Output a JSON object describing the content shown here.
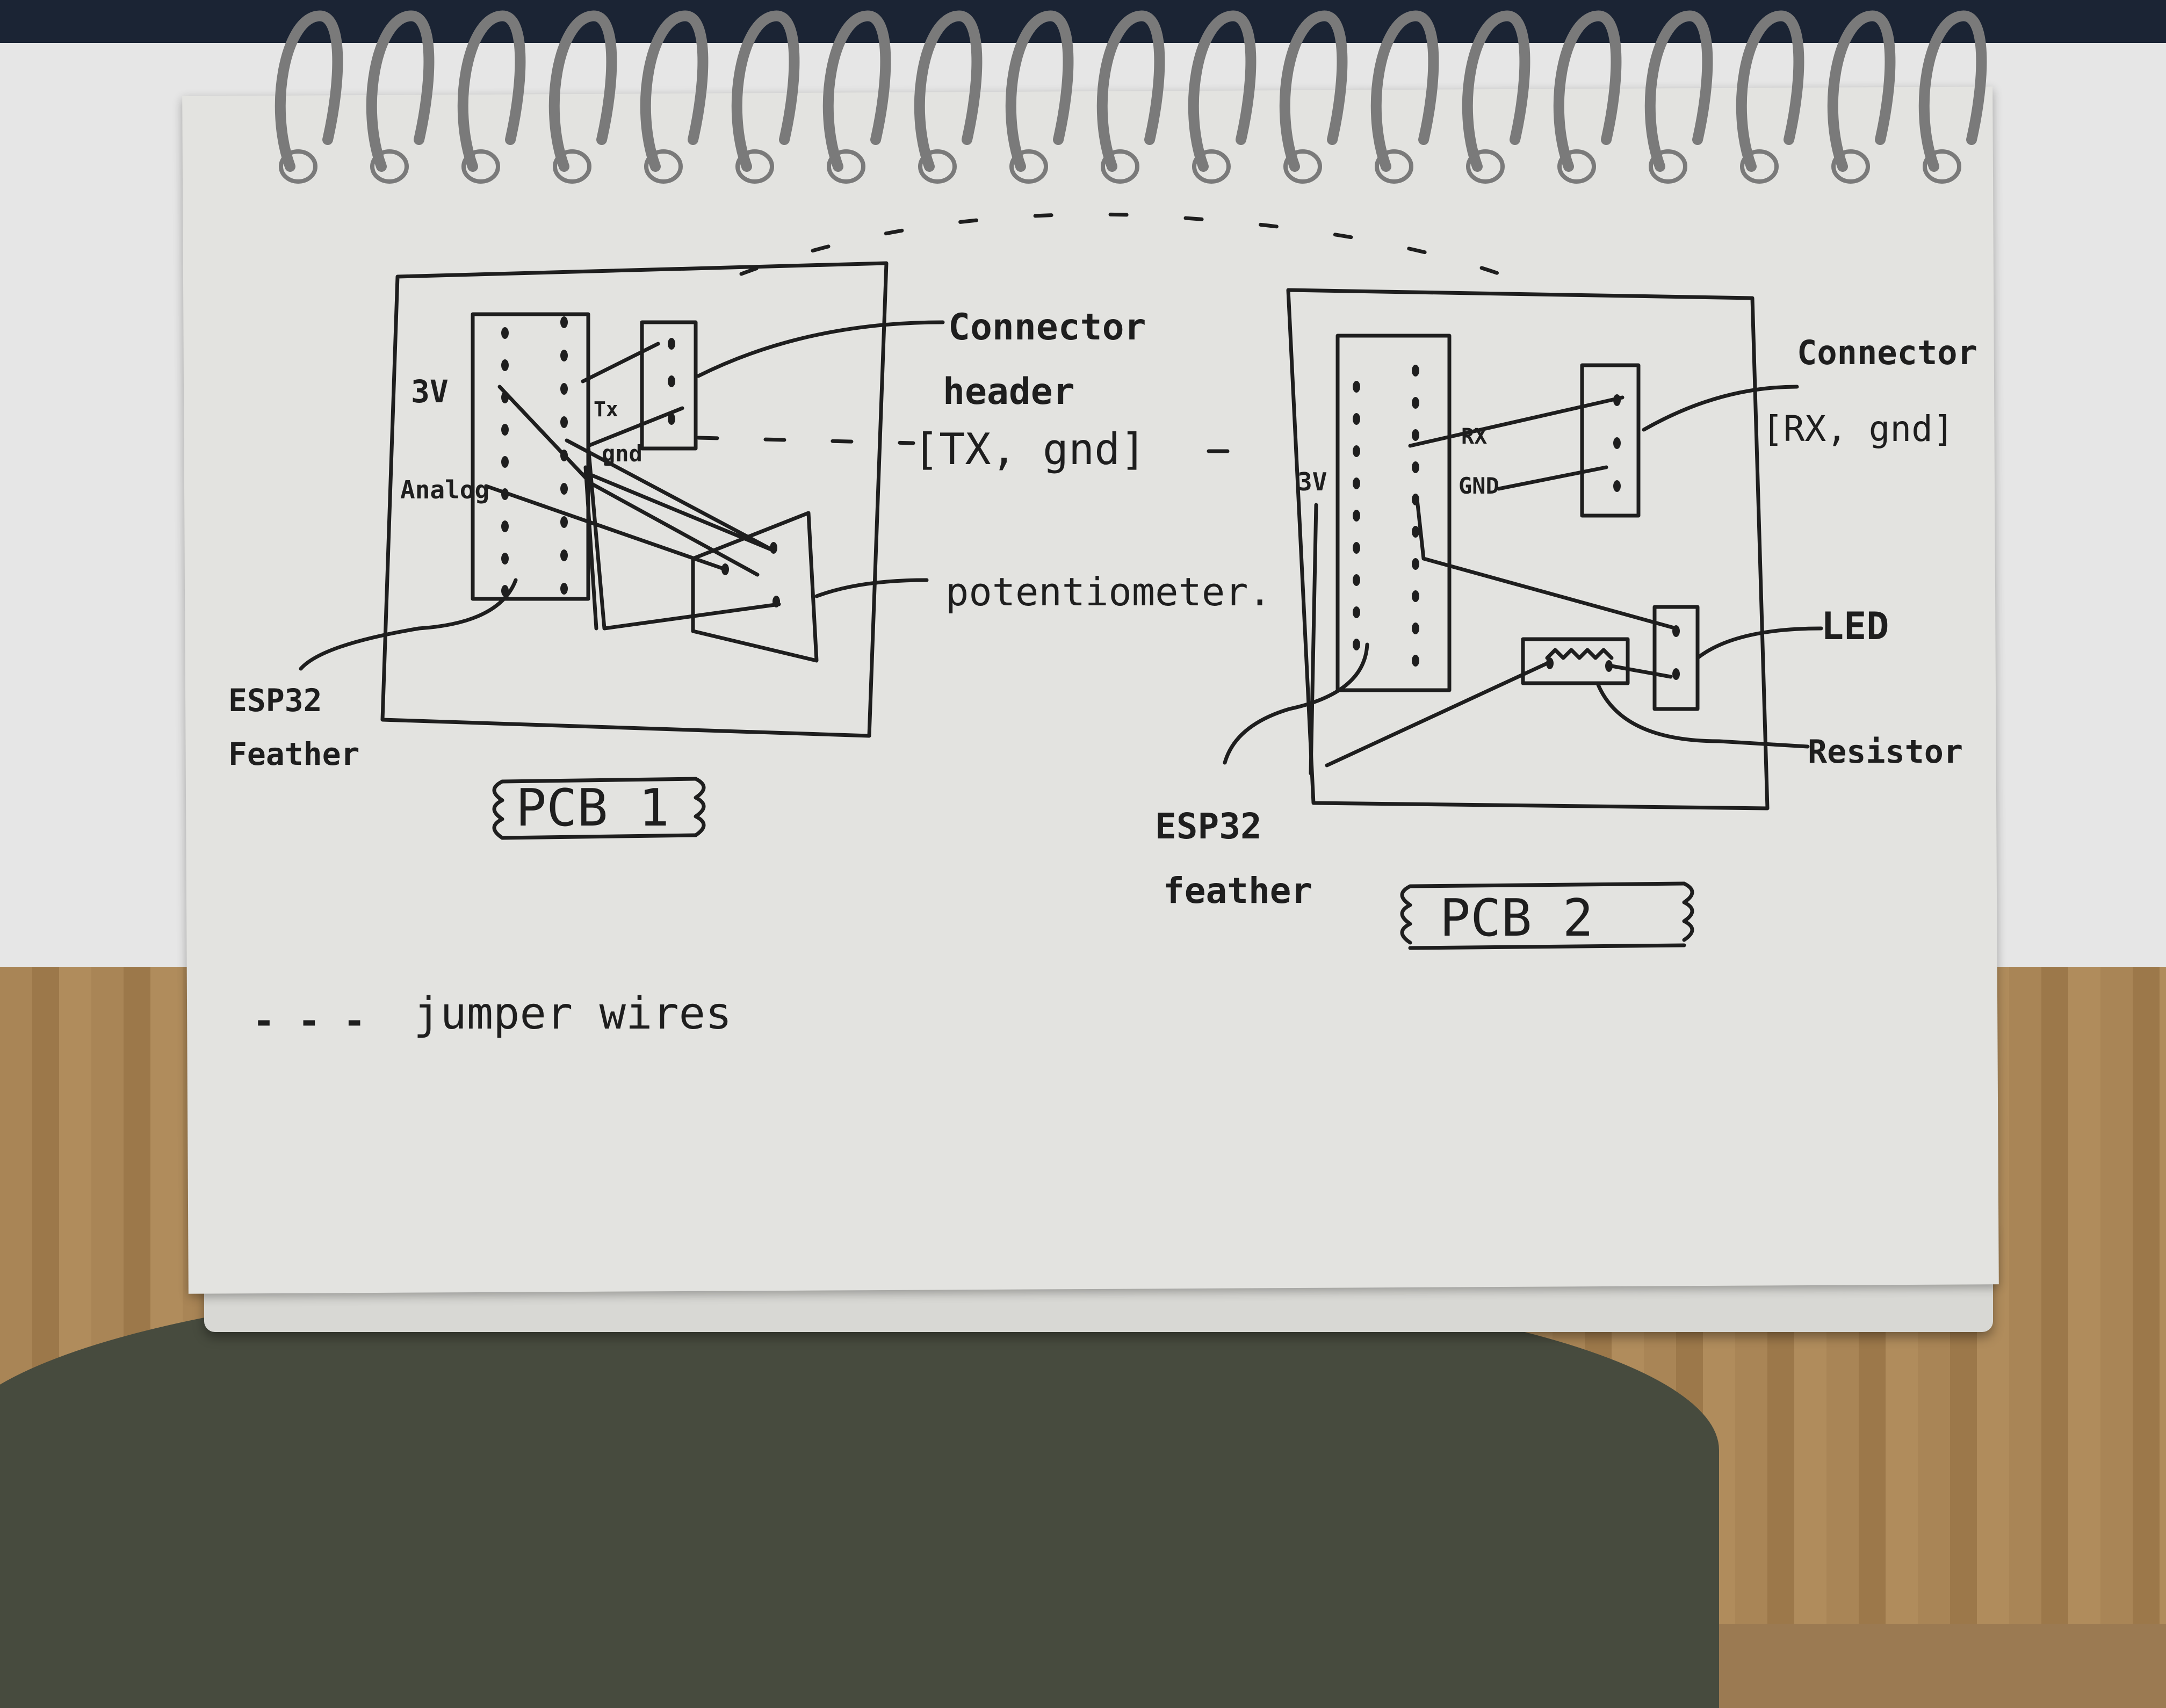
{
  "pcb1": {
    "title": "PCB 1",
    "label_3v": "3V",
    "label_tx": "Tx",
    "label_gnd": "gnd",
    "label_analog": "Analog",
    "connector_label": "Connector",
    "connector_label2": "header",
    "connector_pins": "[TX, gnd]",
    "pot_label": "potentiometer.",
    "esp_label": "ESP32",
    "esp_label2": "Feather"
  },
  "pcb2": {
    "title": "PCB 2",
    "label_3v": "3V",
    "label_rx": "RX",
    "label_gnd": "GND",
    "connector_label": "Connector",
    "connector_pins": "[RX, gnd]",
    "led_label": "LED",
    "resistor_label": "Resistor",
    "esp_label": "ESP32",
    "esp_label2": "feather"
  },
  "legend": {
    "dash": "- - -",
    "text": "jumper wires"
  }
}
